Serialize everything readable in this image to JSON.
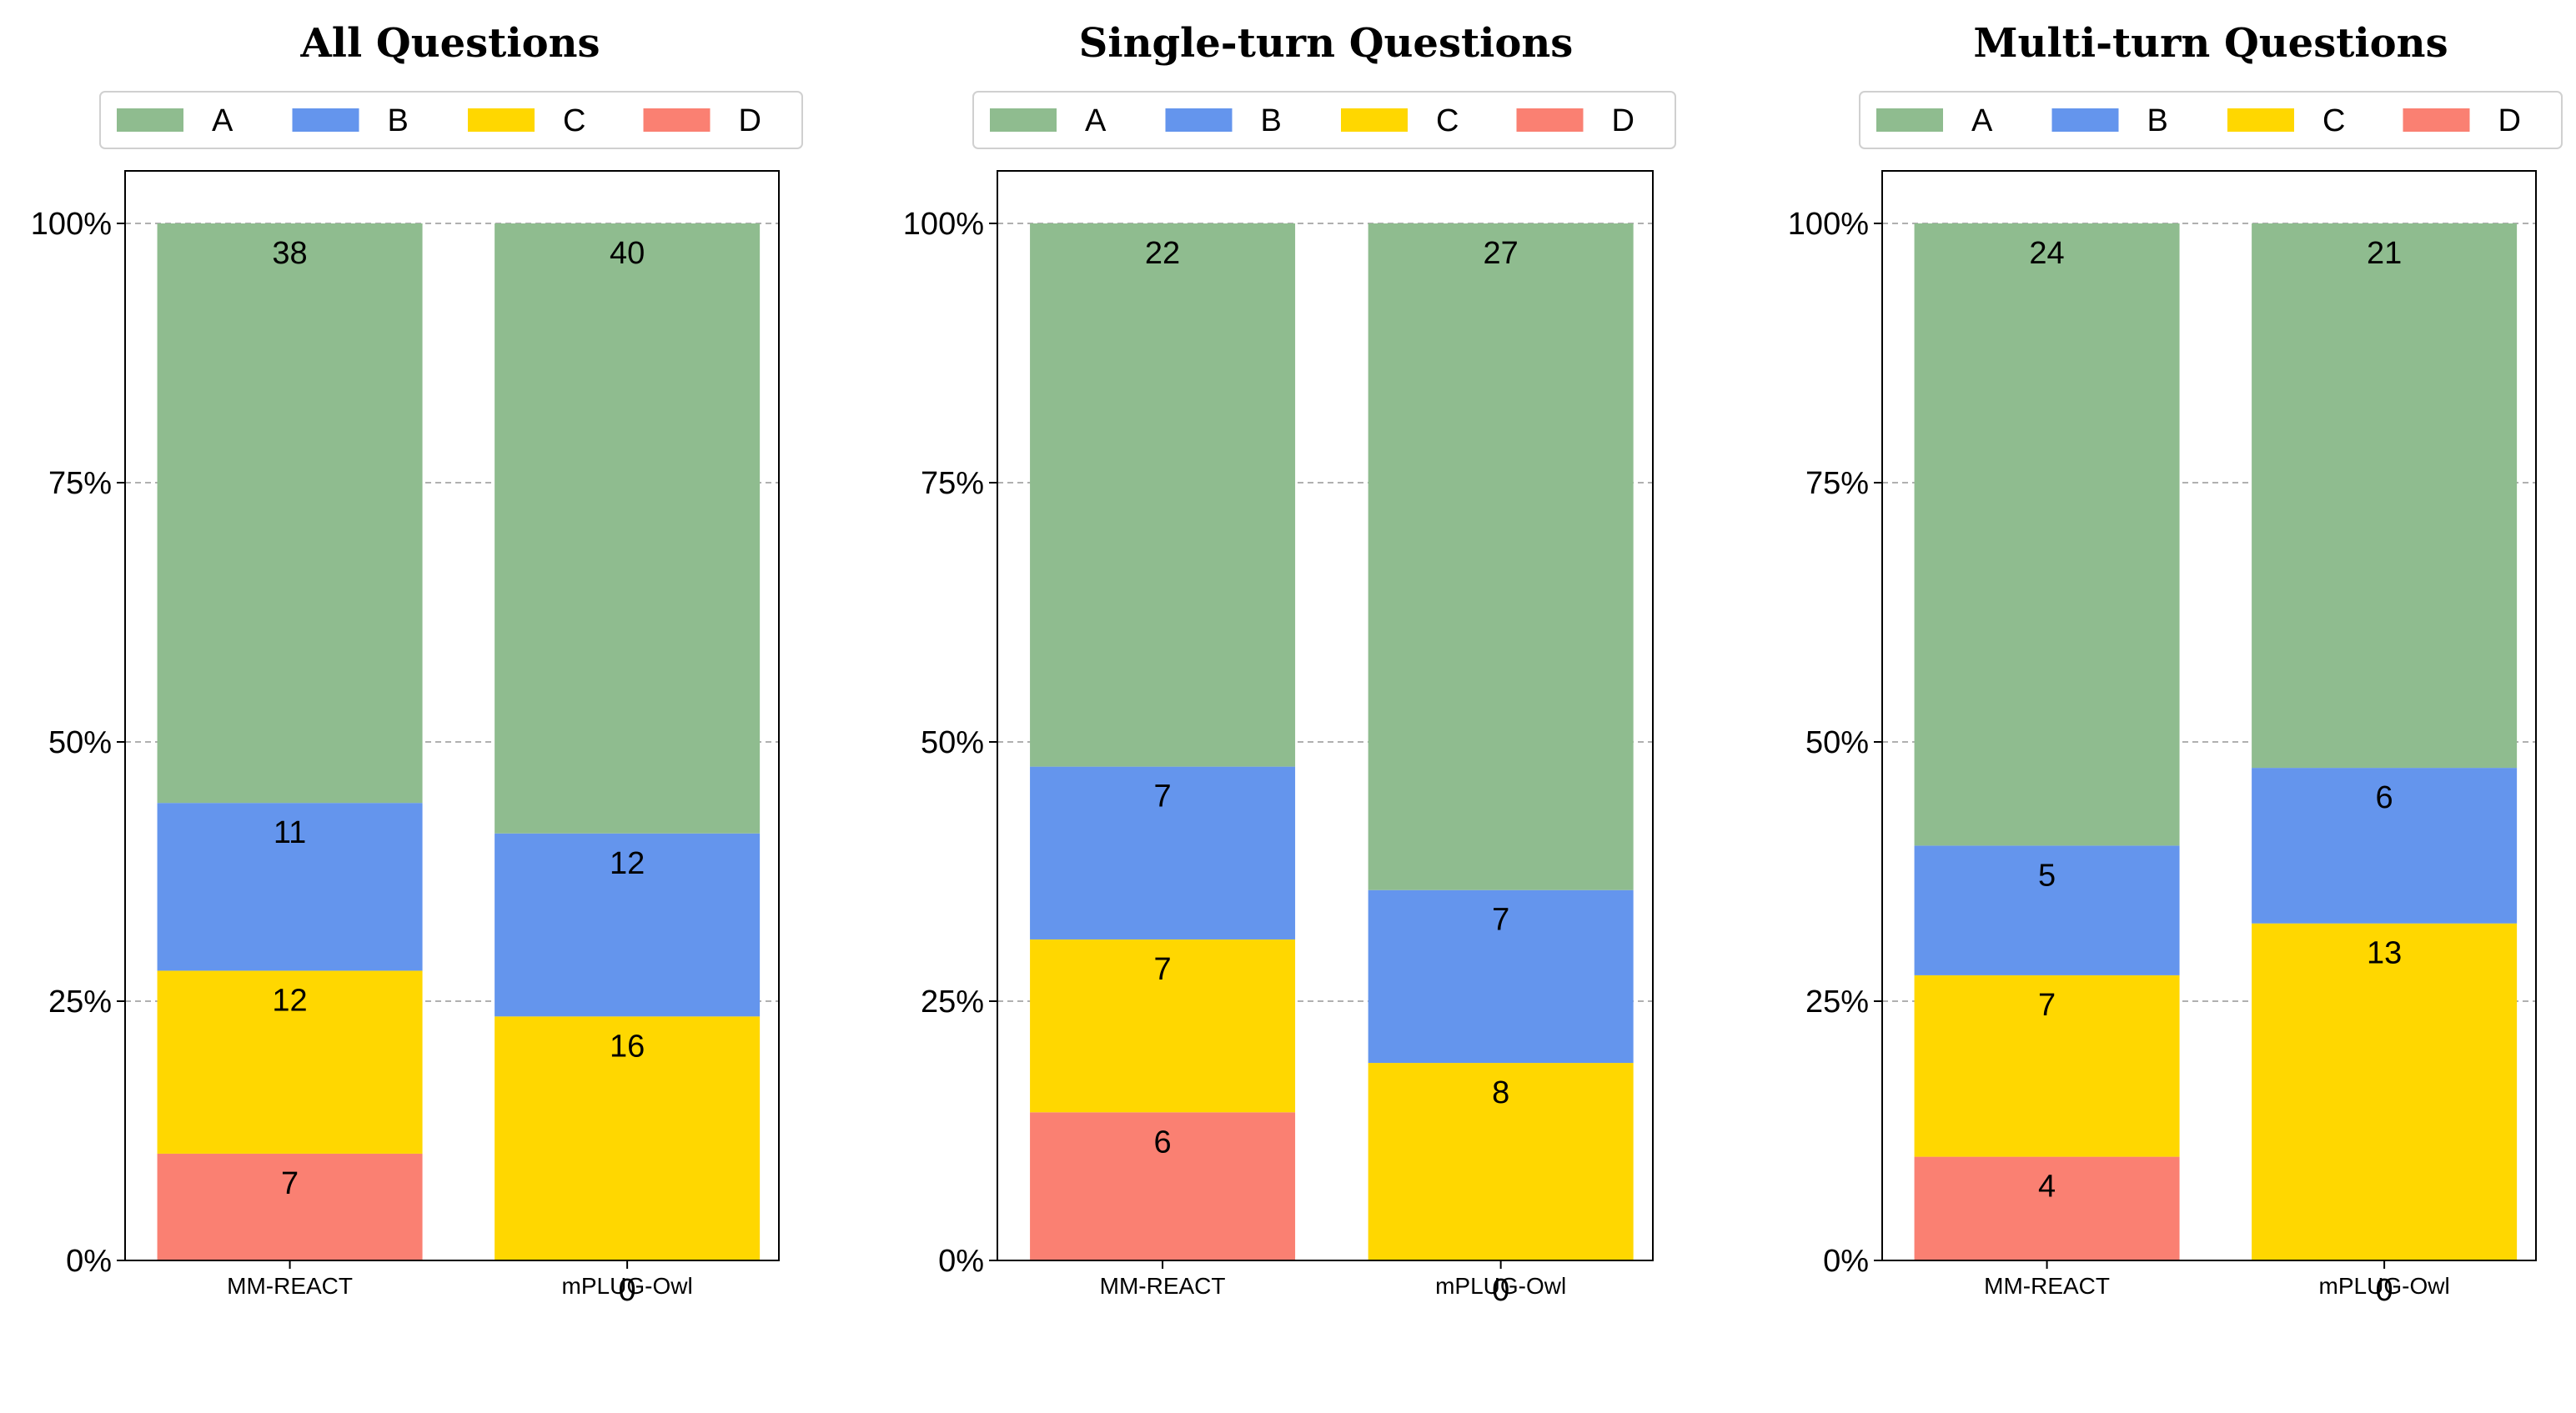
{
  "colors": {
    "A": "#8fbc8f",
    "B": "#6495ed",
    "C": "#ffd700",
    "D": "#fa8072"
  },
  "legend": [
    "A",
    "B",
    "C",
    "D"
  ],
  "y_ticks": [
    "0%",
    "25%",
    "50%",
    "75%",
    "100%"
  ],
  "chart_data": [
    {
      "type": "bar",
      "stacked": true,
      "normalized": true,
      "title": "All Questions",
      "categories": [
        "MM-REACT",
        "mPLUG-Owl"
      ],
      "series": [
        {
          "name": "D",
          "values": [
            7,
            0
          ]
        },
        {
          "name": "C",
          "values": [
            12,
            16
          ]
        },
        {
          "name": "B",
          "values": [
            11,
            12
          ]
        },
        {
          "name": "A",
          "values": [
            38,
            40
          ]
        }
      ],
      "ylim": [
        0,
        100
      ],
      "ylabel_format": "percent",
      "legend_position": "top-center",
      "grid": true
    },
    {
      "type": "bar",
      "stacked": true,
      "normalized": true,
      "title": "Single-turn Questions",
      "categories": [
        "MM-REACT",
        "mPLUG-Owl"
      ],
      "series": [
        {
          "name": "D",
          "values": [
            6,
            0
          ]
        },
        {
          "name": "C",
          "values": [
            7,
            8
          ]
        },
        {
          "name": "B",
          "values": [
            7,
            7
          ]
        },
        {
          "name": "A",
          "values": [
            22,
            27
          ]
        }
      ],
      "ylim": [
        0,
        100
      ],
      "ylabel_format": "percent",
      "legend_position": "top-center",
      "grid": true
    },
    {
      "type": "bar",
      "stacked": true,
      "normalized": true,
      "title": "Multi-turn Questions",
      "categories": [
        "MM-REACT",
        "mPLUG-Owl"
      ],
      "series": [
        {
          "name": "D",
          "values": [
            4,
            0
          ]
        },
        {
          "name": "C",
          "values": [
            7,
            13
          ]
        },
        {
          "name": "B",
          "values": [
            5,
            6
          ]
        },
        {
          "name": "A",
          "values": [
            24,
            21
          ]
        }
      ],
      "ylim": [
        0,
        100
      ],
      "ylabel_format": "percent",
      "legend_position": "top-center",
      "grid": true
    }
  ]
}
